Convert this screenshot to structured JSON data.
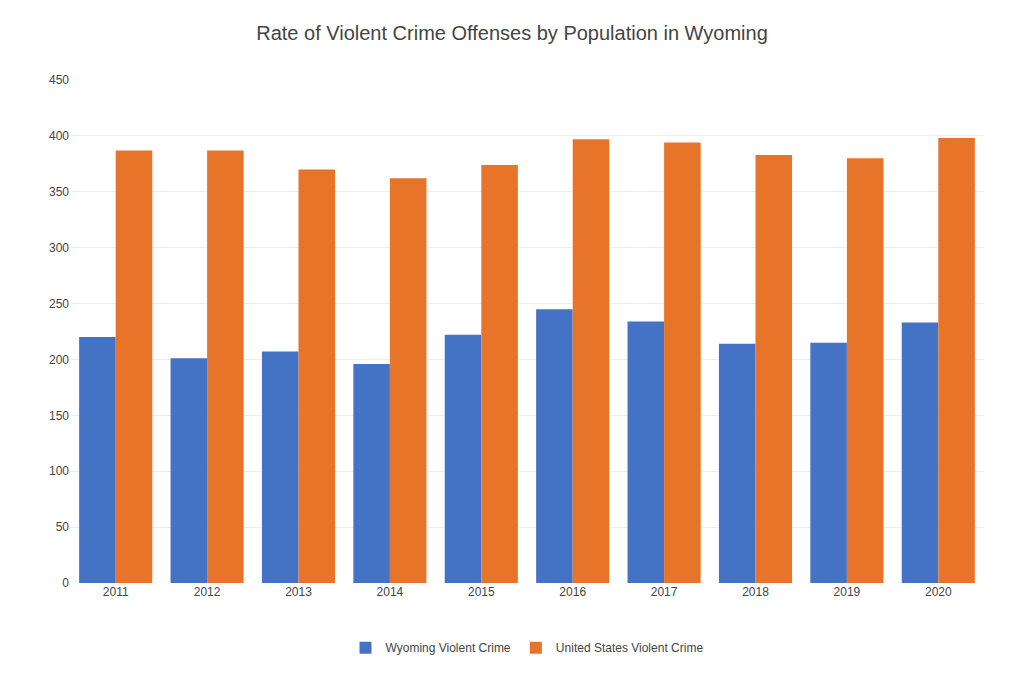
{
  "chart_data": {
    "type": "bar",
    "title": "Rate of Violent Crime Offenses by Population in Wyoming",
    "categories": [
      "2011",
      "2012",
      "2013",
      "2014",
      "2015",
      "2016",
      "2017",
      "2018",
      "2019",
      "2020"
    ],
    "series": [
      {
        "name": "Wyoming Violent Crime",
        "color": "#4472C4",
        "values": [
          220,
          201,
          207,
          196,
          222,
          245,
          234,
          214,
          215,
          233
        ]
      },
      {
        "name": "United States Violent Crime",
        "color": "#E8742A",
        "values": [
          387,
          387,
          370,
          362,
          374,
          397,
          394,
          383,
          380,
          398
        ]
      }
    ],
    "ylim": [
      0,
      450
    ],
    "yticks": [
      0,
      50,
      100,
      150,
      200,
      250,
      300,
      350,
      400,
      450
    ],
    "grid": true,
    "legend": "bottom"
  }
}
